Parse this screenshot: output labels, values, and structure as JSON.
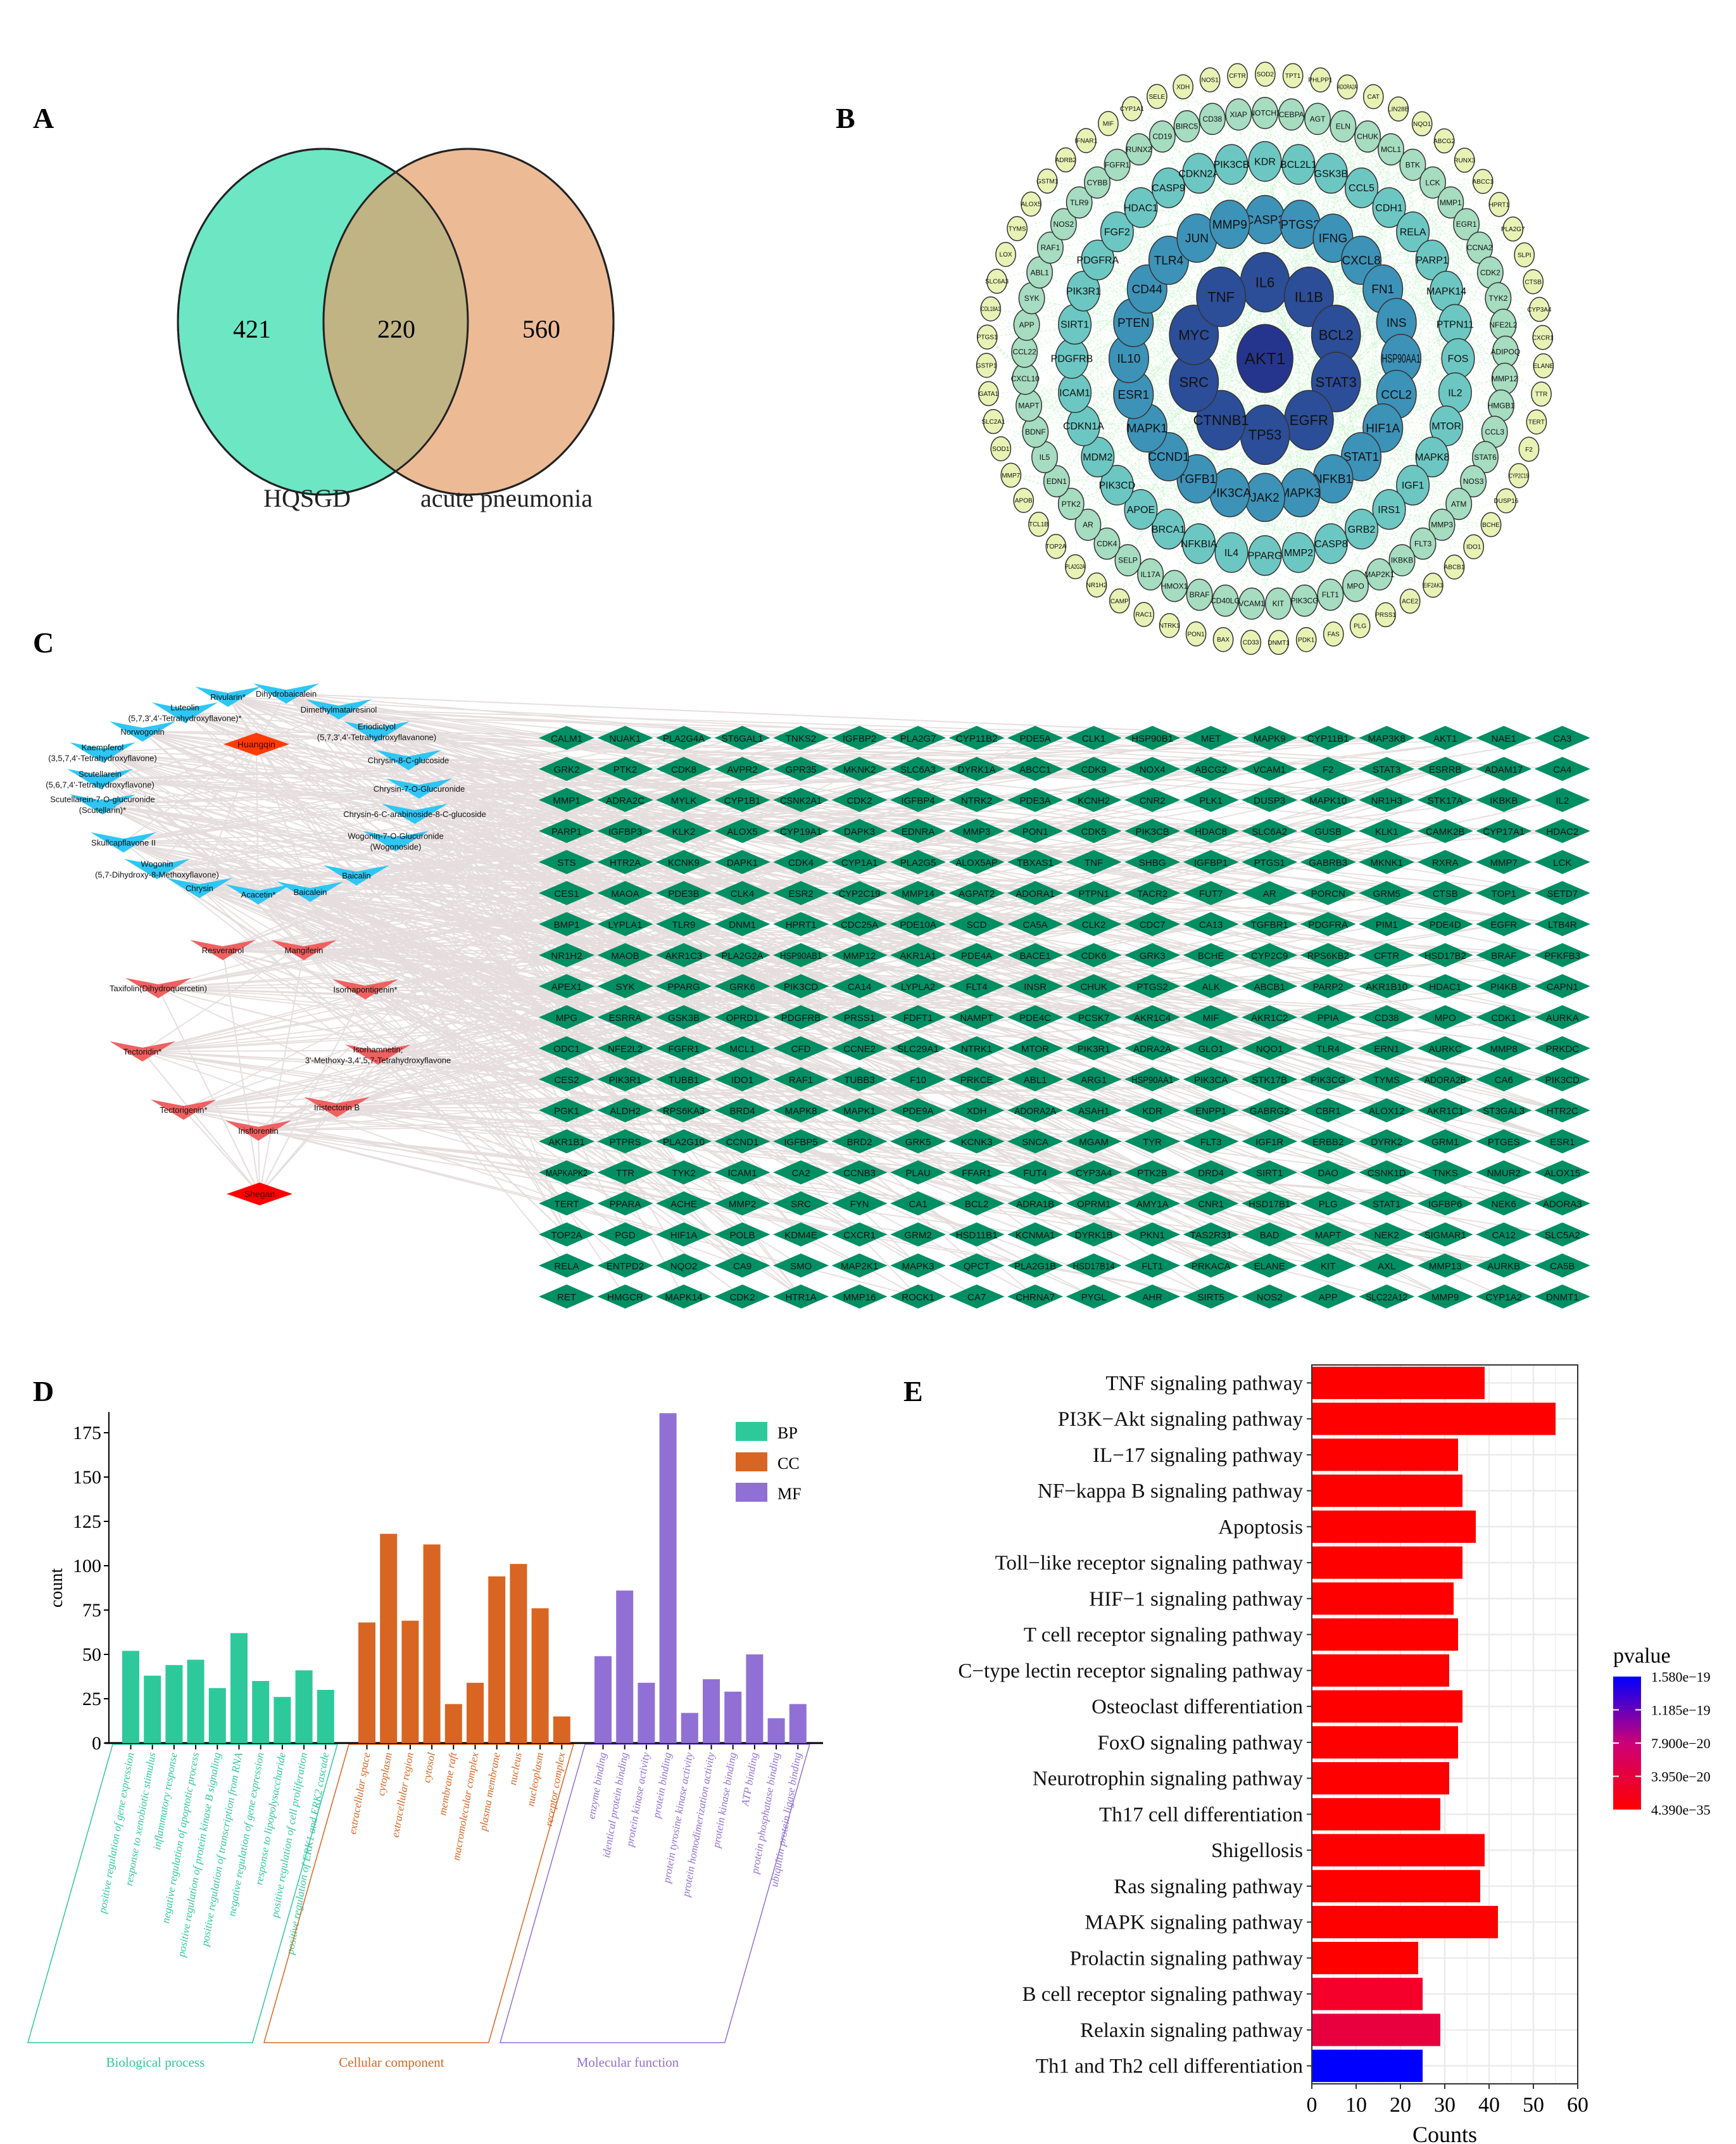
{
  "panels": {
    "A": {
      "label": "A"
    },
    "B": {
      "label": "B"
    },
    "C": {
      "label": "C"
    },
    "D": {
      "label": "D"
    },
    "E": {
      "label": "E"
    }
  },
  "venn": {
    "sets": [
      {
        "name": "HQSGD",
        "unique": 421,
        "color": "#6de6c4"
      },
      {
        "name": "acute pneumonia",
        "unique": 560,
        "color": "#ecbb96"
      }
    ],
    "intersection": 220,
    "intersection_color": "#c0b485"
  },
  "ppi_network": {
    "rings": [
      {
        "level": 0,
        "color": "#25358e",
        "nodes": [
          "AKT1"
        ]
      },
      {
        "level": 1,
        "color": "#2c4d98",
        "nodes": [
          "IL6",
          "IL1B",
          "BCL2",
          "STAT3",
          "EGFR",
          "TP53",
          "CTNNB1",
          "SRC",
          "MYC",
          "TNF"
        ]
      },
      {
        "level": 2,
        "color": "#3d92b8",
        "nodes": [
          "CASP3",
          "PTGS2",
          "IFNG",
          "CXCL8",
          "FN1",
          "INS",
          "HSP90AA1",
          "CCL2",
          "HIF1A",
          "STAT1",
          "NFKB1",
          "MAPK3",
          "JAK2",
          "PIK3CA",
          "TGFB1",
          "CCND1",
          "MAPK1",
          "ESR1",
          "IL10",
          "PTEN",
          "CD44",
          "TLR4",
          "JUN",
          "MMP9"
        ]
      },
      {
        "level": 3,
        "color": "#6cc7c3",
        "nodes": [
          "KDR",
          "BCL2L1",
          "GSK3B",
          "CCL5",
          "CDH1",
          "RELA",
          "PARP1",
          "MAPK14",
          "PTPN11",
          "FOS",
          "IL2",
          "MTOR",
          "MAPK8",
          "IGF1",
          "IRS1",
          "GRB2",
          "CASP8",
          "MMP2",
          "PPARG",
          "IL4",
          "NFKBIA",
          "BRCA1",
          "APOE",
          "PIK3CD",
          "MDM2",
          "CDKN1A",
          "ICAM1",
          "PDGFRB",
          "SIRT1",
          "PIK3R1",
          "PDGFRA",
          "FGF2",
          "HDAC1",
          "CASP9",
          "CDKN2A",
          "PIK3CB"
        ]
      },
      {
        "level": 4,
        "color": "#a6dcc0",
        "nodes": [
          "NOTCH1",
          "CEBPA",
          "AGT",
          "ELN",
          "CHUK",
          "MCL1",
          "BTK",
          "LCK",
          "MMP1",
          "EGR1",
          "CCNA2",
          "CDK2",
          "TYK2",
          "NFE2L2",
          "ADIPOQ",
          "MMP12",
          "HMGB1",
          "CCL3",
          "STAT6",
          "NOS3",
          "ATM",
          "MMP3",
          "FLT3",
          "IKBKB",
          "MAP2K1",
          "MPO",
          "FLT1",
          "PIK3CG",
          "KIT",
          "VCAM1",
          "CD40LG",
          "BRAF",
          "HMOX1",
          "IL17A",
          "SELP",
          "CDK4",
          "AR",
          "PTK2",
          "EDN1",
          "IL5",
          "BDNF",
          "MAPT",
          "CXCL10",
          "CCL22",
          "APP",
          "SYK",
          "ABL1",
          "RAF1",
          "NOS2",
          "TLR9",
          "CYBB",
          "FGFR1",
          "RUNX2",
          "CD19",
          "BIRC5",
          "CD38",
          "XIAP"
        ]
      },
      {
        "level": 5,
        "color": "#e8f2b4",
        "nodes": [
          "ADORA2A",
          "CAT",
          "LIN28B",
          "NQO1",
          "ABCG2",
          "RUNX3",
          "ABCC1",
          "HPRT1",
          "PLA2G7",
          "SLPI",
          "CTSB",
          "CYP3A4",
          "CXCR1",
          "ELANE",
          "TTR",
          "TERT",
          "F2",
          "CYP2C19",
          "DUSP16",
          "BCHE",
          "IDO1",
          "ABCB1",
          "EIF2AK3",
          "ACE2",
          "PRSS1",
          "PLG",
          "FAS",
          "PDK1",
          "DNMT1",
          "CD33",
          "BAX",
          "PON1",
          "NTRK1",
          "RAC1",
          "CAMP",
          "NR1H2",
          "PLA2G2A",
          "TOP2A",
          "TCL1B",
          "APOB",
          "MMP7",
          "SOD1",
          "SLC2A1",
          "GATA1",
          "GSTP1",
          "PTGS1",
          "COL18A1",
          "SLC6A3",
          "LOX",
          "TYMS",
          "ALOX5",
          "GSTM1",
          "ADRB2",
          "IFNAR1",
          "MIF",
          "CYP1A1",
          "SELE",
          "XDH",
          "NOS1",
          "CFTR",
          "SOD2",
          "TPT1",
          "PHLPP1"
        ]
      }
    ],
    "edge_color": "#c8f5cc"
  },
  "herb_network": {
    "herbs": [
      {
        "name": "Huangqin",
        "color": "#ff3b00"
      },
      {
        "name": "Shegan",
        "color": "#ff0000"
      }
    ],
    "huangqin_compounds": [
      "Rivularin*",
      "Dihydrobaicalein",
      "Luteolin\n(5,7,3',4'-Tetrahydroxyflavone)*",
      "Dimethylmatairesinol",
      "Norwogonin",
      "Eriodictyol\n(5,7,3',4'-Tetrahydroxyflavanone)",
      "Kaempferol\n(3,5,7,4'-Tetrahydroxyflavone)",
      "Chrysin-8-C-glucoside",
      "Scutellarein\n(5,6,7,4'-Tetrahydroxyflavone)",
      "Chrysin-7-O-Glucuronide",
      "Scutellarein-7-O-glucuronide\n(Scutellarin)*",
      "Chrysin-6-C-arabinoside-8-C-glucoside",
      "Skullcapflavone II",
      "Wogonin-7-O-Glucuronide\n(Wogonoside)",
      "Wogonin\n(5,7-Dihydroxy-8-Methoxyflavone)",
      "Baicalin",
      "Chrysin",
      "Acacetin*",
      "Baicalein"
    ],
    "shegan_compounds": [
      "Resveratrol",
      "Mangiferin",
      "Taxifolin(Dihydroquercetin)",
      "Isorhapontigenin*",
      "Tectoridin*",
      "Isorhamnetin;\n3'-Methoxy-3,4',5,7-Tetrahydroxyflavone",
      "Tectorigenin*",
      "Iristectorin B",
      "Irisflorentin"
    ],
    "huangqin_compound_color": "#2ec6f5",
    "shegan_compound_color": "#f06060",
    "target_color": "#008f62",
    "edge_color": "#e6dede",
    "targets": [
      [
        "CALM1",
        "NUAK1",
        "PLA2G4A",
        "ST6GAL1",
        "TNKS2",
        "IGFBP2",
        "PLA2G7",
        "CYP11B2",
        "PDE5A",
        "CLK1",
        "HSP90B1",
        "MET",
        "MAPK9",
        "CYP11B1",
        "MAP3K8",
        "AKT1",
        "NAE1",
        "CA3"
      ],
      [
        "GRK2",
        "PTK2",
        "CDK8",
        "AVPR2",
        "GPR35",
        "MKNK2",
        "SLC6A3",
        "DYRK1A",
        "ABCC1",
        "CDK9",
        "NOX4",
        "ABCG2",
        "VCAM1",
        "F2",
        "STAT3",
        "ESRRB",
        "ADAM17",
        "CA4"
      ],
      [
        "MMP1",
        "ADRA2C",
        "MYLK",
        "CYP1B1",
        "CSNK2A1",
        "CDK2",
        "IGFBP4",
        "NTRK2",
        "PDE3A",
        "KCNH2",
        "CNR2",
        "PLK1",
        "DUSP3",
        "MAPK10",
        "NR1H3",
        "STK17A",
        "IKBKB",
        "IL2"
      ],
      [
        "PARP1",
        "IGFBP3",
        "KLK2",
        "ALOX5",
        "CYP19A1",
        "DAPK3",
        "EDNRA",
        "MMP3",
        "PON1",
        "CDK5",
        "PIK3CB",
        "HDAC8",
        "SLC6A2",
        "GUSB",
        "KLK1",
        "CAMK2B",
        "CYP17A1",
        "HDAC2"
      ],
      [
        "STS",
        "HTR2A",
        "KCNK9",
        "DAPK1",
        "CDK4",
        "CYP1A1",
        "PLA2G5",
        "ALOX5AP",
        "TBXAS1",
        "TNF",
        "SHBG",
        "IGFBP1",
        "PTGS1",
        "GABRB3",
        "MKNK1",
        "RXRA",
        "MMP7",
        "LCK"
      ],
      [
        "CES1",
        "MAOA",
        "PDE3B",
        "CLK4",
        "ESR2",
        "CYP2C19",
        "MMP14",
        "AGPAT2",
        "ADORA1",
        "PTPN1",
        "TACR2",
        "FUT7",
        "AR",
        "PORCN",
        "GRM5",
        "CTSB",
        "TOP1",
        "SETD7"
      ],
      [
        "BMP1",
        "LYPLA1",
        "TLR9",
        "DNM1",
        "HPRT1",
        "CDC25A",
        "PDE10A",
        "SCD",
        "CA5A",
        "CLK2",
        "CDC7",
        "CA13",
        "TGFBR1",
        "PDGFRA",
        "PIM1",
        "PDE4D",
        "EGFR",
        "LTB4R"
      ],
      [
        "NR1H2",
        "MAOB",
        "AKR1C3",
        "PLA2G2A",
        "HSP90AB1",
        "MMP12",
        "AKR1A1",
        "PDE4A",
        "BACE1",
        "CDK6",
        "GRK3",
        "BCHE",
        "CYP2C9",
        "RPS6KB2",
        "CFTR",
        "HSD17B2",
        "BRAF",
        "PFKFB3"
      ],
      [
        "APEX1",
        "SYK",
        "PPARG",
        "GRK6",
        "PIK3CD",
        "CA14",
        "LYPLA2",
        "FLT4",
        "INSR",
        "CHUK",
        "PTGS2",
        "ALK",
        "ABCB1",
        "PARP2",
        "AKR1B10",
        "HDAC1",
        "PI4KB",
        "CAPN1"
      ],
      [
        "MPG",
        "ESRRA",
        "GSK3B",
        "OPRD1",
        "PDGFRB",
        "PRSS1",
        "FDFT1",
        "NAMPT",
        "PDE4C",
        "PCSK7",
        "AKR1C4",
        "MIF",
        "AKR1C2",
        "PPIA",
        "CD38",
        "MPO",
        "CDK1",
        "AURKA"
      ],
      [
        "ODC1",
        "NFE2L2",
        "FGFR1",
        "MCL1",
        "CFD",
        "CCNE2",
        "SLC29A1",
        "NTRK1",
        "MTOR",
        "PIK3R1",
        "ADRA2A",
        "GLO1",
        "NQO1",
        "TLR4",
        "ERN1",
        "AURKC",
        "MMP8",
        "PRKDC"
      ],
      [
        "CES2",
        "PIK3R1",
        "TUBB1",
        "IDO1",
        "RAF1",
        "TUBB3",
        "F10",
        "PRKCE",
        "ABL1",
        "ARG1",
        "HSP90AA1",
        "PIK3CA",
        "STK17B",
        "PIK3CG",
        "TYMS",
        "ADORA2B",
        "CA6",
        "PIK3CD"
      ],
      [
        "PGK1",
        "ALDH2",
        "RPS6KA3",
        "BRD4",
        "MAPK8",
        "MAPK1",
        "PDE9A",
        "XDH",
        "ADORA2A",
        "ASAH1",
        "KDR",
        "ENPP1",
        "GABRG2",
        "CBR1",
        "ALOX12",
        "AKR1C1",
        "ST3GAL3",
        "HTR2C"
      ],
      [
        "AKR1B1",
        "PTPRS",
        "PLA2G10",
        "CCND1",
        "IGFBP5",
        "BRD2",
        "GRK5",
        "KCNK3",
        "SNCA",
        "MGAM",
        "TYR",
        "FLT3",
        "IGF1R",
        "ERBB2",
        "DYRK2",
        "GRM1",
        "PTGES",
        "ESR1"
      ],
      [
        "MAPKAPK2",
        "TTR",
        "TYK2",
        "ICAM1",
        "CA2",
        "CCNB3",
        "PLAU",
        "FFAR1",
        "FUT4",
        "CYP3A4",
        "PTK2B",
        "DRD4",
        "SIRT1",
        "DAO",
        "CSNK1D",
        "TNKS",
        "NMUR2",
        "ALOX15"
      ],
      [
        "TERT",
        "PPARA",
        "ACHE",
        "MMP2",
        "SRC",
        "FYN",
        "CA1",
        "BCL2",
        "ADRA1B",
        "OPRM1",
        "AMY1A",
        "CNR1",
        "HSD17B1",
        "PLG",
        "STAT1",
        "IGFBP6",
        "NEK6",
        "ADORA3"
      ],
      [
        "TOP2A",
        "PGD",
        "HIF1A",
        "POLB",
        "KDM4E",
        "CXCR1",
        "GRM2",
        "HSD11B1",
        "KCNMA1",
        "DYRK1B",
        "PKN1",
        "TAS2R31",
        "BAD",
        "MAPT",
        "NEK2",
        "SIGMAR1",
        "CA12",
        "SLC5A2"
      ],
      [
        "RELA",
        "ENTPD2",
        "NQO2",
        "CA9",
        "SMO",
        "MAP2K1",
        "MAPK3",
        "QPCT",
        "PLA2G1B",
        "HSD17B14",
        "FLT1",
        "PRKACA",
        "ELANE",
        "KIT",
        "AXL",
        "MMP13",
        "AURKB",
        "CA5B"
      ],
      [
        "RET",
        "HMGCR",
        "MAPK14",
        "CDK2",
        "HTR1A",
        "MMP16",
        "ROCK1",
        "CA7",
        "CHRNA7",
        "PYGL",
        "AHR",
        "SIRT5",
        "NOS2",
        "APP",
        "SLC22A12",
        "MMP9",
        "CYP1A2",
        "DNMT1"
      ]
    ]
  },
  "chart_data": [
    {
      "type": "bar",
      "panel": "D",
      "title": "",
      "xlabel": "",
      "ylabel": "count",
      "ylim": [
        0,
        186
      ],
      "yticks": [
        0,
        25,
        50,
        75,
        100,
        125,
        150,
        175
      ],
      "legend": {
        "position": "top-right",
        "entries": [
          "BP",
          "CC",
          "MF"
        ]
      },
      "series": [
        {
          "name": "BP",
          "group_label": "Biological process",
          "color": "#2ec99b",
          "categories": [
            "positive regulation of gene expression",
            "response to xenobiotic stimulus",
            "inflammatory response",
            "negative regulation of apoptotic process",
            "positive regulation of protein kinase B signaling",
            "positive regulation of transcription from RNA",
            "negative regulation of gene expression",
            "response to lipopolysaccharide",
            "positive regulation of cell proliferation",
            "positive regulation of ERK1 and ERK2 cascade"
          ],
          "values": [
            52,
            38,
            44,
            47,
            31,
            62,
            35,
            26,
            41,
            30
          ]
        },
        {
          "name": "CC",
          "group_label": "Cellular component",
          "color": "#d96522",
          "categories": [
            "extracellular space",
            "cytoplasm",
            "extracellular region",
            "cytosol",
            "membrane raft",
            "macromolecular complex",
            "plasma membrane",
            "nucleus",
            "nucleoplasm",
            "receptor complex"
          ],
          "values": [
            68,
            118,
            69,
            112,
            22,
            34,
            94,
            101,
            76,
            15
          ]
        },
        {
          "name": "MF",
          "group_label": "Molecular function",
          "color": "#9170d6",
          "categories": [
            "enzyme binding",
            "identical protein binding",
            "protein kinase activity",
            "protein binding",
            "protein tyrosine kinase activity",
            "protein homodimerization activity",
            "protein kinase binding",
            "ATP binding",
            "protein phosphatase binding",
            "ubiquitin protein ligase binding"
          ],
          "values": [
            49,
            86,
            34,
            186,
            17,
            36,
            29,
            50,
            14,
            22
          ]
        }
      ]
    },
    {
      "type": "bar",
      "orientation": "horizontal",
      "panel": "E",
      "title": "",
      "xlabel": "Counts",
      "ylabel": "",
      "xlim": [
        0,
        60
      ],
      "xticks": [
        0,
        10,
        20,
        30,
        40,
        50,
        60
      ],
      "grid": true,
      "categories": [
        "TNF signaling pathway",
        "PI3K−Akt signaling pathway",
        "IL−17 signaling pathway",
        "NF−kappa B signaling pathway",
        "Apoptosis",
        "Toll−like receptor signaling pathway",
        "HIF−1 signaling pathway",
        "T cell receptor signaling pathway",
        "C−type lectin receptor signaling pathway",
        "Osteoclast differentiation",
        "FoxO signaling pathway",
        "Neurotrophin signaling pathway",
        "Th17 cell differentiation",
        "Shigellosis",
        "Ras signaling pathway",
        "MAPK signaling pathway",
        "Prolactin signaling pathway",
        "B cell receptor signaling pathway",
        "Relaxin signaling pathway",
        "Th1 and Th2 cell differentiation"
      ],
      "values": [
        39,
        55,
        33,
        34,
        37,
        34,
        32,
        33,
        31,
        34,
        33,
        31,
        29,
        39,
        38,
        42,
        24,
        25,
        29,
        25
      ],
      "bar_colors": [
        "#ff0000",
        "#ff0000",
        "#ff0000",
        "#ff0000",
        "#ff0000",
        "#ff0000",
        "#ff0000",
        "#ff0000",
        "#ff0000",
        "#ff0000",
        "#ff0000",
        "#ff0000",
        "#ff0000",
        "#ff0000",
        "#ff0000",
        "#ff0000",
        "#ff0000",
        "#f5002a",
        "#e8003e",
        "#0000ff"
      ],
      "colorbar": {
        "title": "pvalue",
        "labels": [
          "1.580e−19",
          "1.185e−19",
          "7.900e−20",
          "3.950e−20",
          "4.390e−35"
        ],
        "top_color": "#0000ff",
        "mid_color": "#cc0077",
        "bottom_color": "#ff0000",
        "position": "right"
      }
    }
  ]
}
